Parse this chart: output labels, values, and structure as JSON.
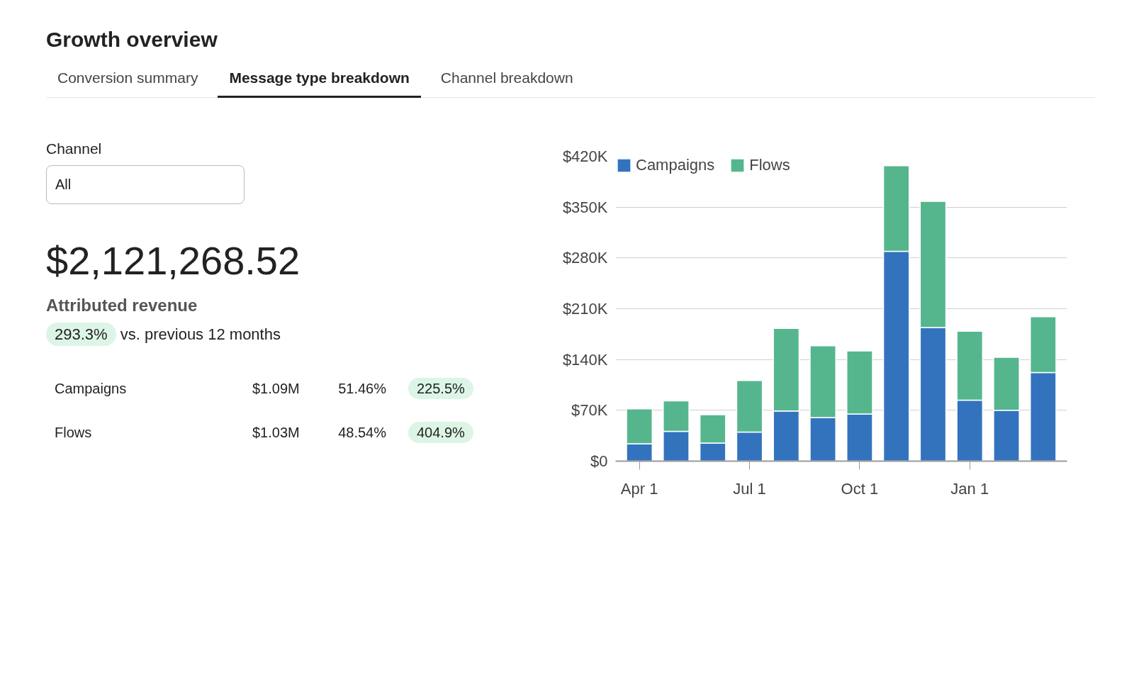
{
  "chart_data": {
    "type": "bar",
    "title": "Growth overview",
    "stacked": true,
    "categories": [
      "Apr 1",
      null,
      null,
      "Jul 1",
      null,
      null,
      "Oct 1",
      null,
      null,
      "Jan 1",
      null,
      null
    ],
    "series": [
      {
        "name": "Campaigns",
        "color": "#3373be",
        "values": [
          24000,
          41000,
          25000,
          40000,
          69000,
          60000,
          65000,
          289000,
          184000,
          84000,
          70000,
          122000
        ]
      },
      {
        "name": "Flows",
        "color": "#55b68e",
        "values": [
          48000,
          42000,
          39000,
          71000,
          114000,
          99000,
          87000,
          118000,
          174000,
          95000,
          73000,
          77000
        ]
      }
    ],
    "ylim": [
      0,
      420000
    ],
    "yticks": [
      {
        "value": 0,
        "label": "$0"
      },
      {
        "value": 70000,
        "label": "$70K"
      },
      {
        "value": 140000,
        "label": "$140K"
      },
      {
        "value": 210000,
        "label": "$210K"
      },
      {
        "value": 280000,
        "label": "$280K"
      },
      {
        "value": 350000,
        "label": "$350K"
      },
      {
        "value": 420000,
        "label": "$420K"
      }
    ],
    "grid": "y",
    "legend": "top left",
    "annotations": [
      "Conversion summary",
      "Message type breakdown",
      "Channel breakdown",
      "Channel",
      "All",
      "$2,121,268.52",
      "Attributed revenue",
      "293.3%",
      "vs. previous 12 months",
      "Campaigns",
      "$1.09M",
      "51.46%",
      "225.5%",
      "Flows",
      "$1.03M",
      "48.54%",
      "404.9%"
    ]
  }
}
